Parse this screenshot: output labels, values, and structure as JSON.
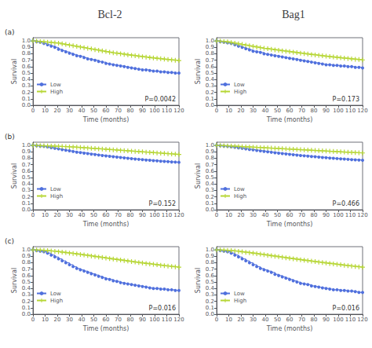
{
  "chart_data": [
    {
      "type": "line",
      "title": "Bcl-2",
      "annotations": [
        "(a)",
        "P=0.0042"
      ],
      "xlabel": "Time (months)",
      "ylabel": "Survival",
      "xlim": [
        0,
        120
      ],
      "ylim": [
        0.0,
        1.05
      ],
      "xticks": [
        0,
        10,
        20,
        30,
        40,
        50,
        60,
        70,
        80,
        90,
        100,
        110,
        120
      ],
      "yticks": [
        {
          "value": 0.0,
          "label": "0.0"
        },
        0.1,
        0.2,
        0.3,
        0.4,
        0.5,
        0.6,
        0.7,
        0.8,
        0.9,
        {
          "value": 1.0,
          "label": "1.0"
        }
      ],
      "grid": false,
      "legend": "lower left",
      "x": [
        0,
        3,
        6,
        9,
        12,
        15,
        18,
        21,
        24,
        27,
        30,
        33,
        36,
        39,
        42,
        45,
        48,
        51,
        54,
        57,
        60,
        63,
        66,
        69,
        72,
        75,
        78,
        81,
        84,
        87,
        90,
        93,
        96,
        99,
        102,
        105,
        108,
        111,
        114,
        117,
        120
      ],
      "series": [
        {
          "name": "Low",
          "marker": "circle",
          "line_style": "step",
          "values": [
            1.0,
            0.99,
            0.98,
            0.96,
            0.94,
            0.92,
            0.9,
            0.87,
            0.85,
            0.83,
            0.81,
            0.79,
            0.77,
            0.76,
            0.74,
            0.72,
            0.71,
            0.7,
            0.68,
            0.67,
            0.65,
            0.64,
            0.63,
            0.62,
            0.61,
            0.6,
            0.59,
            0.58,
            0.57,
            0.56,
            0.55,
            0.55,
            0.54,
            0.53,
            0.53,
            0.52,
            0.52,
            0.51,
            0.51,
            0.5,
            0.5
          ]
        },
        {
          "name": "High",
          "marker": "plus",
          "line_style": "step",
          "values": [
            1.0,
            0.995,
            0.99,
            0.985,
            0.98,
            0.975,
            0.97,
            0.965,
            0.955,
            0.945,
            0.935,
            0.925,
            0.915,
            0.905,
            0.895,
            0.885,
            0.875,
            0.865,
            0.855,
            0.845,
            0.835,
            0.825,
            0.815,
            0.808,
            0.8,
            0.792,
            0.784,
            0.776,
            0.769,
            0.762,
            0.755,
            0.748,
            0.741,
            0.735,
            0.728,
            0.722,
            0.716,
            0.71,
            0.705,
            0.7,
            0.695
          ]
        }
      ]
    },
    {
      "type": "line",
      "title": "Bag1",
      "annotations": [
        "P=0.173"
      ],
      "xlabel": "Time (months)",
      "ylabel": "Survival",
      "xlim": [
        0,
        120
      ],
      "ylim": [
        0.0,
        1.05
      ],
      "xticks": [
        0,
        10,
        20,
        30,
        40,
        50,
        60,
        70,
        80,
        90,
        100,
        110,
        120
      ],
      "yticks": [
        {
          "value": 0.0,
          "label": "0.0"
        },
        0.1,
        0.2,
        0.3,
        0.4,
        0.5,
        0.6,
        0.7,
        0.8,
        0.9,
        {
          "value": 1.0,
          "label": "1.0"
        }
      ],
      "grid": false,
      "legend": "lower left",
      "x": [
        0,
        3,
        6,
        9,
        12,
        15,
        18,
        21,
        24,
        27,
        30,
        33,
        36,
        39,
        42,
        45,
        48,
        51,
        54,
        57,
        60,
        63,
        66,
        69,
        72,
        75,
        78,
        81,
        84,
        87,
        90,
        93,
        96,
        99,
        102,
        105,
        108,
        111,
        114,
        117,
        120
      ],
      "series": [
        {
          "name": "Low",
          "marker": "circle",
          "line_style": "step",
          "values": [
            1.0,
            0.99,
            0.98,
            0.97,
            0.96,
            0.94,
            0.92,
            0.9,
            0.88,
            0.86,
            0.84,
            0.83,
            0.82,
            0.8,
            0.79,
            0.78,
            0.77,
            0.76,
            0.75,
            0.74,
            0.73,
            0.72,
            0.71,
            0.7,
            0.69,
            0.68,
            0.67,
            0.66,
            0.65,
            0.64,
            0.63,
            0.63,
            0.62,
            0.62,
            0.61,
            0.61,
            0.6,
            0.6,
            0.59,
            0.59,
            0.58
          ]
        },
        {
          "name": "High",
          "marker": "plus",
          "line_style": "step",
          "values": [
            1.0,
            0.995,
            0.99,
            0.985,
            0.975,
            0.965,
            0.955,
            0.945,
            0.935,
            0.925,
            0.915,
            0.905,
            0.895,
            0.885,
            0.878,
            0.87,
            0.862,
            0.855,
            0.847,
            0.84,
            0.832,
            0.825,
            0.817,
            0.81,
            0.803,
            0.796,
            0.789,
            0.782,
            0.775,
            0.768,
            0.762,
            0.756,
            0.75,
            0.744,
            0.738,
            0.732,
            0.727,
            0.72,
            0.715,
            0.71,
            0.705
          ]
        }
      ]
    },
    {
      "type": "line",
      "annotations": [
        "(b)",
        "P=0.152"
      ],
      "xlabel": "Time (months)",
      "ylabel": "Survival",
      "xlim": [
        0,
        120
      ],
      "ylim": [
        0.0,
        1.05
      ],
      "xticks": [
        0,
        10,
        20,
        30,
        40,
        50,
        60,
        70,
        80,
        90,
        100,
        110,
        120
      ],
      "yticks": [
        {
          "value": 0.0,
          "label": "0.0"
        },
        0.1,
        0.2,
        0.3,
        0.4,
        0.5,
        0.6,
        0.7,
        0.8,
        0.9,
        {
          "value": 1.0,
          "label": "1.0"
        }
      ],
      "grid": false,
      "legend": "lower left",
      "x": [
        0,
        3,
        6,
        9,
        12,
        15,
        18,
        21,
        24,
        27,
        30,
        33,
        36,
        39,
        42,
        45,
        48,
        51,
        54,
        57,
        60,
        63,
        66,
        69,
        72,
        75,
        78,
        81,
        84,
        87,
        90,
        93,
        96,
        99,
        102,
        105,
        108,
        111,
        114,
        117,
        120
      ],
      "series": [
        {
          "name": "Low",
          "marker": "circle",
          "line_style": "step",
          "values": [
            1.0,
            0.995,
            0.99,
            0.985,
            0.975,
            0.965,
            0.955,
            0.945,
            0.935,
            0.925,
            0.915,
            0.905,
            0.895,
            0.888,
            0.88,
            0.872,
            0.865,
            0.857,
            0.85,
            0.843,
            0.836,
            0.83,
            0.823,
            0.817,
            0.811,
            0.805,
            0.799,
            0.793,
            0.788,
            0.783,
            0.778,
            0.773,
            0.768,
            0.763,
            0.759,
            0.755,
            0.751,
            0.747,
            0.743,
            0.74,
            0.737
          ]
        },
        {
          "name": "High",
          "marker": "plus",
          "line_style": "step",
          "values": [
            1.0,
            0.998,
            0.996,
            0.994,
            0.992,
            0.99,
            0.988,
            0.986,
            0.983,
            0.98,
            0.977,
            0.974,
            0.971,
            0.967,
            0.963,
            0.959,
            0.955,
            0.951,
            0.947,
            0.943,
            0.939,
            0.935,
            0.931,
            0.927,
            0.923,
            0.919,
            0.915,
            0.911,
            0.907,
            0.903,
            0.899,
            0.895,
            0.891,
            0.887,
            0.883,
            0.879,
            0.875,
            0.871,
            0.867,
            0.863,
            0.86
          ]
        }
      ]
    },
    {
      "type": "line",
      "annotations": [
        "P=0.466"
      ],
      "xlabel": "Time (months)",
      "ylabel": "Survival",
      "xlim": [
        0,
        120
      ],
      "ylim": [
        0.0,
        1.05
      ],
      "xticks": [
        0,
        10,
        20,
        30,
        40,
        50,
        60,
        70,
        80,
        90,
        100,
        110,
        120
      ],
      "yticks": [
        {
          "value": 0.0,
          "label": "0.0"
        },
        0.1,
        0.2,
        0.3,
        0.4,
        0.5,
        0.6,
        0.7,
        0.8,
        0.9,
        {
          "value": 1.0,
          "label": "1.0"
        }
      ],
      "grid": false,
      "legend": "lower left",
      "x": [
        0,
        3,
        6,
        9,
        12,
        15,
        18,
        21,
        24,
        27,
        30,
        33,
        36,
        39,
        42,
        45,
        48,
        51,
        54,
        57,
        60,
        63,
        66,
        69,
        72,
        75,
        78,
        81,
        84,
        87,
        90,
        93,
        96,
        99,
        102,
        105,
        108,
        111,
        114,
        117,
        120
      ],
      "series": [
        {
          "name": "Low",
          "marker": "circle",
          "line_style": "step",
          "values": [
            1.0,
            0.995,
            0.99,
            0.985,
            0.978,
            0.97,
            0.962,
            0.954,
            0.946,
            0.938,
            0.93,
            0.922,
            0.914,
            0.907,
            0.9,
            0.893,
            0.886,
            0.879,
            0.873,
            0.867,
            0.861,
            0.855,
            0.849,
            0.843,
            0.838,
            0.833,
            0.828,
            0.823,
            0.818,
            0.813,
            0.808,
            0.803,
            0.799,
            0.795,
            0.791,
            0.787,
            0.783,
            0.779,
            0.776,
            0.773,
            0.77
          ]
        },
        {
          "name": "High",
          "marker": "plus",
          "line_style": "step",
          "values": [
            1.0,
            0.998,
            0.996,
            0.993,
            0.99,
            0.987,
            0.984,
            0.981,
            0.978,
            0.975,
            0.972,
            0.969,
            0.966,
            0.963,
            0.96,
            0.957,
            0.954,
            0.951,
            0.948,
            0.945,
            0.942,
            0.939,
            0.936,
            0.933,
            0.93,
            0.927,
            0.924,
            0.921,
            0.918,
            0.915,
            0.912,
            0.909,
            0.906,
            0.903,
            0.9,
            0.897,
            0.894,
            0.891,
            0.888,
            0.885,
            0.882
          ]
        }
      ]
    },
    {
      "type": "line",
      "annotations": [
        "(c)",
        "P=0.016"
      ],
      "xlabel": "Time (months)",
      "ylabel": "Survival",
      "xlim": [
        0,
        120
      ],
      "ylim": [
        0.0,
        1.05
      ],
      "xticks": [
        0,
        10,
        20,
        30,
        40,
        50,
        60,
        70,
        80,
        90,
        100,
        110,
        120
      ],
      "yticks": [
        {
          "value": 0.0,
          "label": "0.0"
        },
        0.1,
        0.2,
        0.3,
        0.4,
        0.5,
        0.6,
        0.7,
        0.8,
        0.9,
        {
          "value": 1.0,
          "label": "1.0"
        }
      ],
      "grid": false,
      "legend": "lower left",
      "x": [
        0,
        3,
        6,
        9,
        12,
        15,
        18,
        21,
        24,
        27,
        30,
        33,
        36,
        39,
        42,
        45,
        48,
        51,
        54,
        57,
        60,
        63,
        66,
        69,
        72,
        75,
        78,
        81,
        84,
        87,
        90,
        93,
        96,
        99,
        102,
        105,
        108,
        111,
        114,
        117,
        120
      ],
      "series": [
        {
          "name": "Low",
          "marker": "circle",
          "line_style": "step",
          "values": [
            1.0,
            0.99,
            0.98,
            0.97,
            0.95,
            0.92,
            0.89,
            0.86,
            0.83,
            0.8,
            0.77,
            0.74,
            0.71,
            0.69,
            0.67,
            0.65,
            0.63,
            0.61,
            0.59,
            0.57,
            0.55,
            0.54,
            0.52,
            0.51,
            0.49,
            0.48,
            0.47,
            0.46,
            0.45,
            0.44,
            0.43,
            0.42,
            0.41,
            0.4,
            0.4,
            0.39,
            0.39,
            0.38,
            0.38,
            0.37,
            0.37
          ]
        },
        {
          "name": "High",
          "marker": "plus",
          "line_style": "step",
          "values": [
            1.0,
            0.998,
            0.996,
            0.993,
            0.988,
            0.983,
            0.977,
            0.971,
            0.964,
            0.957,
            0.95,
            0.943,
            0.936,
            0.929,
            0.921,
            0.913,
            0.905,
            0.897,
            0.889,
            0.881,
            0.873,
            0.865,
            0.857,
            0.85,
            0.842,
            0.834,
            0.826,
            0.818,
            0.811,
            0.803,
            0.796,
            0.789,
            0.782,
            0.775,
            0.768,
            0.761,
            0.754,
            0.748,
            0.742,
            0.736,
            0.73
          ]
        }
      ]
    },
    {
      "type": "line",
      "annotations": [
        "P=0.016"
      ],
      "xlabel": "Time (months)",
      "ylabel": "Survival",
      "xlim": [
        0,
        120
      ],
      "ylim": [
        0.0,
        1.05
      ],
      "xticks": [
        0,
        10,
        20,
        30,
        40,
        50,
        60,
        70,
        80,
        90,
        100,
        110,
        120
      ],
      "yticks": [
        {
          "value": 0.0,
          "label": "0.0"
        },
        0.1,
        0.2,
        0.3,
        0.4,
        0.5,
        0.6,
        0.7,
        0.8,
        0.9,
        {
          "value": 1.0,
          "label": "1.0"
        }
      ],
      "grid": false,
      "legend": "lower left",
      "x": [
        0,
        3,
        6,
        9,
        12,
        15,
        18,
        21,
        24,
        27,
        30,
        33,
        36,
        39,
        42,
        45,
        48,
        51,
        54,
        57,
        60,
        63,
        66,
        69,
        72,
        75,
        78,
        81,
        84,
        87,
        90,
        93,
        96,
        99,
        102,
        105,
        108,
        111,
        114,
        117,
        120
      ],
      "series": [
        {
          "name": "Low",
          "marker": "circle",
          "line_style": "step",
          "values": [
            1.0,
            0.99,
            0.98,
            0.97,
            0.95,
            0.92,
            0.89,
            0.86,
            0.83,
            0.8,
            0.77,
            0.74,
            0.71,
            0.69,
            0.67,
            0.65,
            0.62,
            0.6,
            0.58,
            0.56,
            0.54,
            0.52,
            0.5,
            0.48,
            0.47,
            0.46,
            0.44,
            0.43,
            0.42,
            0.41,
            0.4,
            0.39,
            0.38,
            0.38,
            0.37,
            0.37,
            0.36,
            0.36,
            0.35,
            0.34,
            0.34
          ]
        },
        {
          "name": "High",
          "marker": "plus",
          "line_style": "step",
          "values": [
            1.0,
            0.998,
            0.996,
            0.993,
            0.988,
            0.983,
            0.977,
            0.97,
            0.963,
            0.956,
            0.948,
            0.94,
            0.933,
            0.925,
            0.917,
            0.909,
            0.901,
            0.893,
            0.885,
            0.877,
            0.869,
            0.862,
            0.854,
            0.847,
            0.839,
            0.832,
            0.824,
            0.817,
            0.81,
            0.803,
            0.796,
            0.789,
            0.782,
            0.775,
            0.768,
            0.761,
            0.755,
            0.748,
            0.742,
            0.736,
            0.73
          ]
        }
      ]
    }
  ]
}
